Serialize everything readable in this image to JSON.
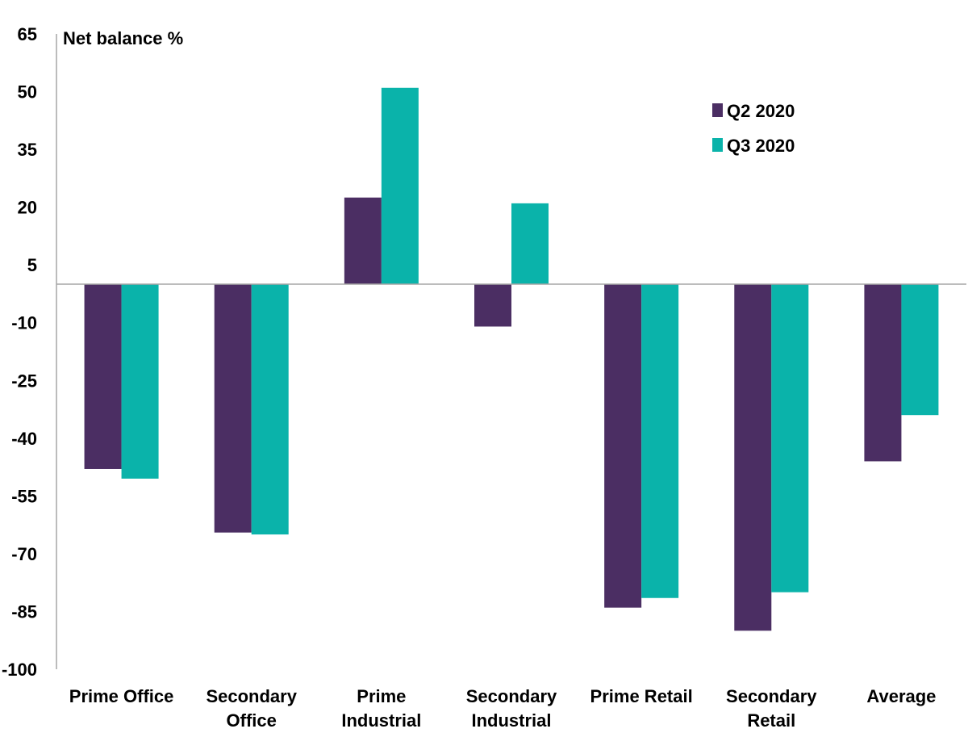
{
  "chart_data": {
    "type": "bar",
    "ylabel": "Net balance %",
    "ylim": [
      -100,
      65
    ],
    "yticks": [
      65,
      50,
      35,
      20,
      5,
      -10,
      -25,
      -40,
      -55,
      -70,
      -85,
      -100
    ],
    "grid": false,
    "legend_position": "top-right",
    "categories": [
      [
        "Prime Office"
      ],
      [
        "Secondary",
        "Office"
      ],
      [
        "Prime",
        "Industrial"
      ],
      [
        "Secondary",
        "Industrial"
      ],
      [
        "Prime Retail"
      ],
      [
        "Secondary",
        "Retail"
      ],
      [
        "Average"
      ]
    ],
    "series": [
      {
        "name": "Q2 2020",
        "color": "#4b2e63",
        "values": [
          -48,
          -64.5,
          22.5,
          -11,
          -84,
          -90,
          -46
        ]
      },
      {
        "name": "Q3 2020",
        "color": "#0ab3aa",
        "values": [
          -50.5,
          -65,
          51,
          21,
          -81.5,
          -80,
          -34
        ]
      }
    ]
  }
}
